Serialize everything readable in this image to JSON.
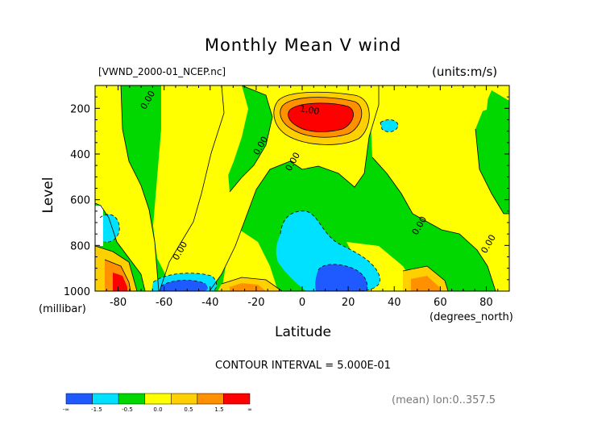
{
  "chart_data": {
    "type": "heatmap",
    "title": "Monthly Mean V wind",
    "file_label": "[VWND_2000-01_NCEP.nc]",
    "units_label": "(units:m/s)",
    "ylabel": "Level",
    "yunit": "(millibar)",
    "xlabel": "Latitude",
    "xunit": "(degrees_north)",
    "xlim": [
      -90,
      90
    ],
    "ylim": [
      1000,
      100
    ],
    "x_ticks": [
      "-80",
      "-60",
      "-40",
      "-20",
      "0",
      "20",
      "40",
      "60",
      "80"
    ],
    "x_tick_values": [
      -80,
      -60,
      -40,
      -20,
      0,
      20,
      40,
      60,
      80
    ],
    "y_ticks": [
      "200",
      "400",
      "600",
      "800",
      "1000"
    ],
    "y_tick_values": [
      200,
      400,
      600,
      800,
      1000
    ],
    "contour_labels": [
      {
        "text": "0.00",
        "lat": -66,
        "lev": 170
      },
      {
        "text": "1.00",
        "lat": 3,
        "lev": 220
      },
      {
        "text": "0.00",
        "lat": -17,
        "lev": 370
      },
      {
        "text": "0.00",
        "lat": -3,
        "lev": 440
      },
      {
        "text": "0.00",
        "lat": -52,
        "lev": 830
      },
      {
        "text": "0.00",
        "lat": 52,
        "lev": 720
      },
      {
        "text": "0.00",
        "lat": 82,
        "lev": 800
      }
    ],
    "contour_interval": "CONTOUR INTERVAL = 5.000E-01",
    "footnote": "(mean) lon:0..357.5",
    "colorbar": {
      "labels": [
        "-∞",
        "-1.5",
        "-0.5",
        "0.0",
        "0.5",
        "1.5",
        "∞"
      ],
      "colors": [
        "#1e5aff",
        "#00e0ff",
        "#00d800",
        "#ffff00",
        "#ffd000",
        "#ff9000",
        "#ff0000"
      ]
    },
    "levels": [
      -1.5,
      -1.0,
      -0.5,
      0.0,
      0.5,
      1.0,
      1.5
    ],
    "field_colors": {
      "below_-1.5": "#1e5aff",
      "-1.5_to_-0.5": "#00e0ff",
      "-0.5_to_0": "#00d800",
      "0_to_0.5": "#ffff00",
      "0.5_to_1.0": "#ffd000",
      "1.0_to_1.5": "#ff9000",
      "above_1.5": "#ff0000"
    }
  }
}
